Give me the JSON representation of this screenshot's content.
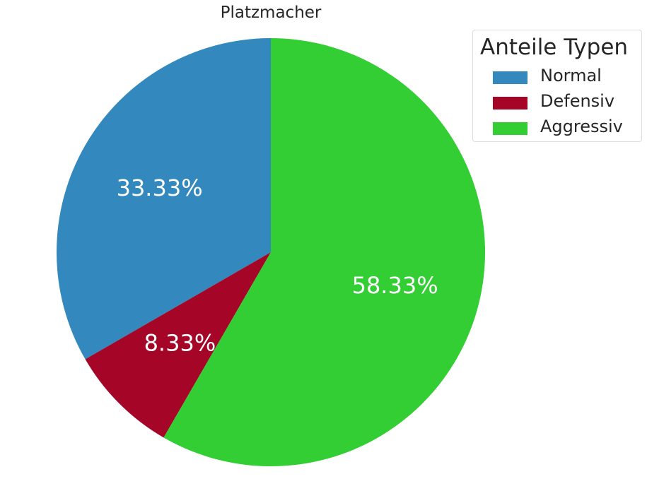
{
  "chart_data": {
    "type": "pie",
    "title": "Platzmacher",
    "legend_title": "Anteile Typen",
    "legend_placement": "top-right",
    "start_angle_deg": 90,
    "direction": "counterclockwise",
    "slices": [
      {
        "label": "Normal",
        "value": 33.33,
        "display": "33.33%",
        "color": "#3388bd"
      },
      {
        "label": "Defensiv",
        "value": 8.33,
        "display": "8.33%",
        "color": "#a50628"
      },
      {
        "label": "Aggressiv",
        "value": 58.33,
        "display": "58.33%",
        "color": "#33cd34"
      }
    ]
  }
}
